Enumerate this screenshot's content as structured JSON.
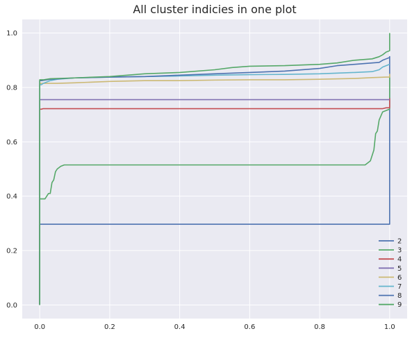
{
  "chart_data": {
    "type": "line",
    "title": "All cluster indicies in one plot",
    "xlabel": "",
    "ylabel": "",
    "xlim": [
      -0.05,
      1.05
    ],
    "ylim": [
      -0.05,
      1.05
    ],
    "xticks": [
      "0.0",
      "0.2",
      "0.4",
      "0.6",
      "0.8",
      "1.0"
    ],
    "yticks": [
      "0.0",
      "0.2",
      "0.4",
      "0.6",
      "0.8",
      "1.0"
    ],
    "grid": true,
    "legend_position": "lower-right",
    "style": {
      "axes_background": "#eaeaf2",
      "grid_color": "#ffffff"
    },
    "series": [
      {
        "name": "2",
        "color": "#4c72b0",
        "x": [
          0,
          0,
          0.003,
          1.0,
          1.0
        ],
        "y": [
          0,
          0.297,
          0.297,
          0.297,
          0.915
        ]
      },
      {
        "name": "3",
        "color": "#55a868",
        "x": [
          0,
          0,
          0.002,
          0.015,
          0.025,
          0.03,
          0.035,
          0.04,
          0.045,
          0.05,
          0.06,
          0.07,
          0.2,
          0.5,
          0.8,
          0.93,
          0.945,
          0.955,
          0.96,
          0.965,
          0.97,
          0.98,
          0.99,
          1.0,
          1.0
        ],
        "y": [
          0,
          0.39,
          0.39,
          0.39,
          0.41,
          0.41,
          0.45,
          0.46,
          0.49,
          0.5,
          0.51,
          0.515,
          0.515,
          0.515,
          0.515,
          0.515,
          0.53,
          0.57,
          0.63,
          0.64,
          0.68,
          0.71,
          0.715,
          0.72,
          0.84
        ]
      },
      {
        "name": "4",
        "color": "#c44e52",
        "x": [
          0,
          0,
          0.001,
          0.005,
          0.01,
          0.5,
          0.98,
          0.99,
          1.0,
          1.0
        ],
        "y": [
          0,
          0.72,
          0.72,
          0.72,
          0.722,
          0.722,
          0.722,
          0.725,
          0.725,
          0.76
        ]
      },
      {
        "name": "5",
        "color": "#8172b2",
        "x": [
          0,
          0,
          0.001,
          0.5,
          1.0
        ],
        "y": [
          0,
          0.755,
          0.755,
          0.755,
          0.755
        ]
      },
      {
        "name": "6",
        "color": "#ccb974",
        "x": [
          0,
          0,
          0.002,
          0.05,
          0.1,
          0.2,
          0.3,
          0.4,
          0.5,
          0.6,
          0.7,
          0.8,
          0.9,
          0.95,
          0.99,
          1.0,
          1.0
        ],
        "y": [
          0,
          0.815,
          0.815,
          0.815,
          0.817,
          0.822,
          0.825,
          0.825,
          0.827,
          0.828,
          0.828,
          0.83,
          0.833,
          0.836,
          0.838,
          0.838,
          0.85
        ]
      },
      {
        "name": "7",
        "color": "#64b5cd",
        "x": [
          0,
          0,
          0.005,
          0.01,
          0.02,
          0.03,
          0.05,
          0.1,
          0.2,
          0.3,
          0.4,
          0.5,
          0.6,
          0.7,
          0.8,
          0.9,
          0.95,
          0.97,
          0.98,
          0.99,
          1.0
        ],
        "y": [
          0,
          0.81,
          0.81,
          0.815,
          0.82,
          0.825,
          0.83,
          0.835,
          0.838,
          0.84,
          0.842,
          0.845,
          0.847,
          0.848,
          0.85,
          0.855,
          0.858,
          0.865,
          0.875,
          0.88,
          0.885
        ]
      },
      {
        "name": "8",
        "color": "#4c72b0",
        "x": [
          0,
          0,
          0.005,
          0.03,
          0.1,
          0.2,
          0.3,
          0.4,
          0.5,
          0.6,
          0.7,
          0.8,
          0.85,
          0.9,
          0.95,
          0.97,
          0.98,
          0.99,
          1.0
        ],
        "y": [
          0,
          0.825,
          0.825,
          0.83,
          0.835,
          0.838,
          0.84,
          0.845,
          0.85,
          0.855,
          0.86,
          0.87,
          0.88,
          0.885,
          0.89,
          0.892,
          0.9,
          0.905,
          0.91
        ]
      },
      {
        "name": "9",
        "color": "#55a868",
        "x": [
          0,
          0,
          0.01,
          0.03,
          0.1,
          0.2,
          0.25,
          0.3,
          0.4,
          0.5,
          0.55,
          0.6,
          0.7,
          0.8,
          0.85,
          0.9,
          0.95,
          0.97,
          0.98,
          0.99,
          1.0,
          1.0
        ],
        "y": [
          0,
          0.828,
          0.828,
          0.832,
          0.835,
          0.84,
          0.845,
          0.85,
          0.855,
          0.865,
          0.873,
          0.878,
          0.88,
          0.885,
          0.89,
          0.9,
          0.905,
          0.913,
          0.92,
          0.93,
          0.935,
          1.0
        ]
      }
    ]
  }
}
